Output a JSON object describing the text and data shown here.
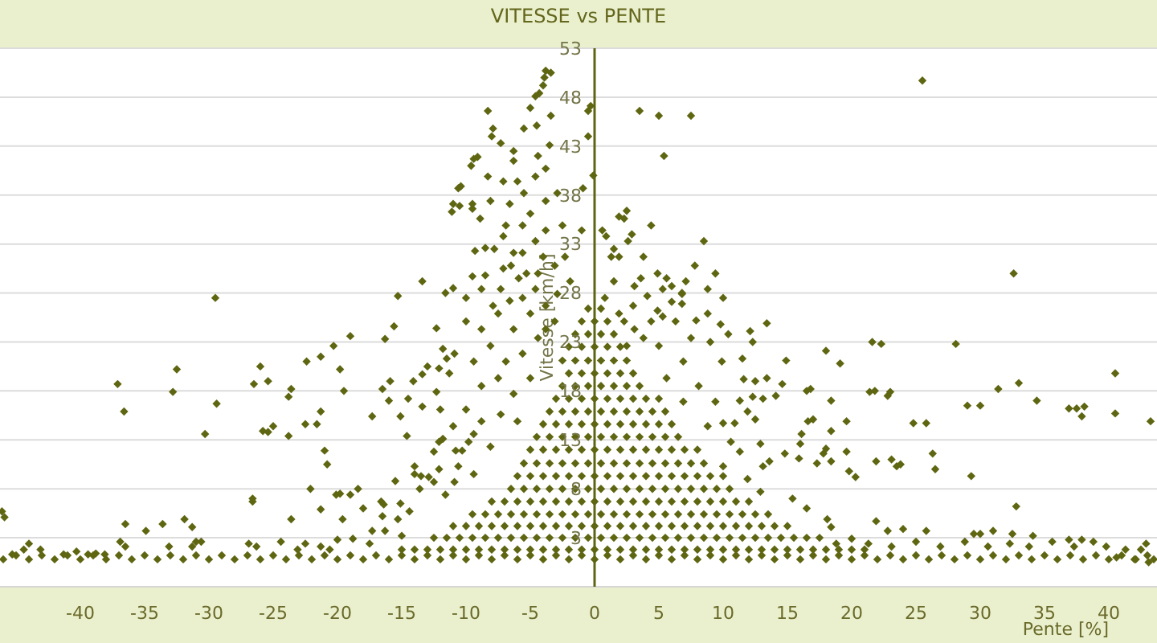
{
  "chart_data": {
    "type": "scatter",
    "title": "VITESSE vs PENTE",
    "xlabel": "Pente [%]",
    "ylabel": "Vitesse [km/h]",
    "xlim": [
      -46.25,
      43.75
    ],
    "xticks": [
      -40,
      -35,
      -30,
      -25,
      -20,
      -15,
      -10,
      -5,
      0,
      5,
      10,
      15,
      20,
      25,
      30,
      35,
      40
    ],
    "ylim": [
      -2,
      53
    ],
    "yticks": [
      3,
      8,
      13,
      18,
      23,
      28,
      33,
      38,
      43,
      48,
      53
    ],
    "grid": "y",
    "marker": "diamond",
    "color": "#5f6611",
    "x": [
      -46,
      -45,
      -44,
      -43,
      -42,
      -41,
      -40,
      -39,
      -38,
      -37,
      -36,
      -35,
      -34,
      -33,
      -32,
      -31,
      -30,
      -29,
      -28,
      -27,
      -26,
      -25,
      -24,
      -23,
      -22,
      -21,
      -20,
      -19,
      -18,
      -17,
      -16,
      -15,
      -14,
      -13,
      -12,
      -11,
      -10,
      -9,
      -8,
      -7,
      -6,
      -5,
      -4,
      -3,
      -2,
      -1,
      0,
      1,
      2,
      3,
      4,
      5,
      6,
      7,
      8,
      9,
      10,
      11,
      12,
      13,
      14,
      15,
      16,
      17,
      18,
      19,
      20,
      21,
      22,
      23,
      24,
      25,
      26,
      27,
      28,
      29,
      30,
      31,
      32,
      33,
      34,
      35,
      36,
      37,
      38,
      39,
      40,
      41,
      42,
      43,
      -15,
      -14,
      -13,
      -12,
      -11,
      -10,
      -9,
      -8,
      -7,
      -6,
      -5,
      -4,
      -3,
      -2,
      -1,
      0,
      1,
      2,
      3,
      4,
      5,
      6,
      7,
      8,
      9,
      10,
      11,
      12,
      13,
      14,
      15,
      16,
      17,
      18,
      19,
      20,
      21,
      -12.5,
      -11.5,
      -10.5,
      -9.5,
      -8.5,
      -7.5,
      -6.5,
      -5.5,
      -4.5,
      -3.5,
      -2.5,
      -1.5,
      -0.5,
      0.5,
      1.5,
      2.5,
      3.5,
      4.5,
      5.5,
      6.5,
      7.5,
      8.5,
      9.5,
      10.5,
      11.5,
      12.5,
      13.5,
      14.5,
      15.5,
      16.5,
      17.5,
      -11,
      -10,
      -9,
      -8,
      -7,
      -6,
      -5,
      -4,
      -3,
      -2,
      -1,
      0,
      1,
      2,
      3,
      4,
      5,
      6,
      7,
      8,
      9,
      10,
      11,
      12,
      13,
      14,
      15,
      -9.5,
      -8.5,
      -7.5,
      -6.5,
      -5.5,
      -4.5,
      -3.5,
      -2.5,
      -1.5,
      -0.5,
      0.5,
      1.5,
      2.5,
      3.5,
      4.5,
      5.5,
      6.5,
      7.5,
      8.5,
      9.5,
      10.5,
      11.5,
      12.5,
      13.5,
      -8,
      -7,
      -6,
      -5,
      -4,
      -3,
      -2,
      -1,
      0,
      1,
      2,
      3,
      4,
      5,
      6,
      7,
      8,
      9,
      10,
      11,
      12,
      -6.5,
      -5.5,
      -4.5,
      -3.5,
      -2.5,
      -1.5,
      -0.5,
      0.5,
      1.5,
      2.5,
      3.5,
      4.5,
      5.5,
      6.5,
      7.5,
      8.5,
      9.5,
      10.5,
      -6,
      -5,
      -4,
      -3,
      -2,
      -1,
      0,
      1,
      2,
      3,
      4,
      5,
      6,
      7,
      8,
      9,
      10,
      -5.5,
      -4.5,
      -3.5,
      -2.5,
      -1.5,
      -0.5,
      0.5,
      1.5,
      2.5,
      3.5,
      4.5,
      5.5,
      6.5,
      7.5,
      8.5,
      -5,
      -4,
      -3,
      -2,
      -1,
      0,
      1,
      2,
      3,
      4,
      5,
      6,
      7,
      8,
      -4.5,
      -3.5,
      -2.5,
      -1.5,
      -0.5,
      0.5,
      1.5,
      2.5,
      3.5,
      4.5,
      5.5,
      6.5,
      -4,
      -3,
      -2,
      -1,
      0,
      1,
      2,
      3,
      4,
      5,
      6,
      -3.5,
      -2.5,
      -1.5,
      -0.5,
      0.5,
      1.5,
      2.5,
      3.5,
      4.5,
      5.5,
      -3,
      -2,
      -1,
      0,
      1,
      2,
      3,
      4,
      5,
      -2.5,
      -1.5,
      -0.5,
      0.5,
      1.5,
      2.5,
      3.5,
      -2,
      -1,
      0,
      1,
      2,
      3,
      -2.5,
      -1.5,
      -0.5,
      0.5,
      1.5,
      2.5,
      -2,
      -1,
      0,
      1,
      2,
      -1.5,
      -0.5,
      0.5,
      1.5,
      -1,
      0,
      1,
      -0.5,
      0.5,
      -29.5,
      -15.3,
      -13.4,
      -8.3,
      -7.9,
      -8,
      -7.3,
      -9.4,
      -9.1,
      -9.6,
      -8.3,
      -10.6,
      -10.4,
      -11,
      -11.1,
      -10.5,
      -9.5,
      -9.5,
      -8.9,
      -9.3,
      -8.5,
      -9.5,
      -8.5,
      -11.6,
      -11,
      -3.4,
      -3.8,
      -3.9,
      -4,
      -4.6,
      -4.3,
      -5,
      -3.4,
      -5.5,
      -4.5,
      -6.3,
      -4.4,
      -3.5,
      -6.3,
      -7.1,
      -6,
      -4.6,
      -3.8,
      -6.6,
      -5,
      -3.8,
      -7.1,
      -4.6,
      -3.8,
      -5.6,
      -6.3,
      -7.1,
      -5.9,
      -4.6,
      -7.9,
      -6.6,
      -2.9,
      -3.1,
      -4,
      -2.9,
      -2.5,
      -2.3,
      -1.9,
      -5.5,
      -0.5,
      -0.3,
      -0.5,
      -0.1,
      0.9,
      1.3,
      0.6,
      1.9,
      -0.9,
      -1,
      25.5,
      3.5,
      5,
      7.5,
      5.4,
      2.5,
      2.3,
      2.9,
      2.6,
      1.5,
      1.9,
      32.6,
      4.9,
      5.6,
      7.1,
      6,
      5.3,
      6.8,
      3.6,
      3.1,
      4.1,
      6,
      6.8,
      6.8,
      4.9,
      5.3,
      7.9,
      3,
      2.3,
      -37.1,
      -36.6,
      -32.5,
      -32.8,
      -29.4,
      -30.3,
      -26.5,
      -26,
      -25.4,
      -25.8,
      -25.4,
      -25,
      -23.8,
      -23.8,
      -23.6,
      -22.4,
      -21.3,
      -20.3,
      -19,
      -19.8,
      -19.5,
      -22.5,
      -21.6,
      -21.3,
      -21,
      -20.8,
      -22.1,
      -21.3,
      -26.6,
      -26.6,
      -23.6,
      -36.5,
      -34.9,
      -33.6,
      -31.9,
      -31.3,
      -16.3,
      -15.6,
      -16.5,
      -15.9,
      -16,
      -17.3,
      -15.1,
      -14.6,
      -15.5,
      -20.1,
      -19.8,
      -19,
      -18.4,
      -18,
      -16.4,
      -16.6,
      -15.1,
      -13.6,
      -19.6,
      -16.5,
      -15.3,
      -14.4,
      -14.5,
      -13.4,
      -14.1,
      -13.4,
      -13,
      -12.3,
      -11.8,
      -11.5,
      -10.9,
      -12.1,
      -11.3,
      -12.3,
      -12,
      -12.5,
      -12.1,
      -11.8,
      -14,
      -14,
      -13.5,
      -12.9,
      -12.1,
      -10.8,
      -10.3,
      -9.8,
      -10.9,
      -11.6,
      -10,
      -8.8,
      -7.5,
      -6.3,
      -5,
      -4.4,
      -8.1,
      -9.4,
      -6.9,
      -5.6,
      -8.8,
      -7.5,
      -6.3,
      -5,
      -10,
      -8.8,
      -7.3,
      -6,
      -11,
      -9.4,
      -8.1,
      -10.6,
      -9.4,
      -12.5,
      -8.8,
      -7.3,
      -5.6,
      -10,
      -6.5,
      -7.8,
      -5.6,
      -5.3,
      -6.9,
      -8.1,
      -4.4,
      -3.8,
      -3.1,
      -3.8,
      -18.8,
      -17.5,
      -21.3,
      -22.5,
      -24.4,
      -26.3,
      -26.9,
      -30.6,
      -31,
      -33.1,
      -36.9,
      -36.5,
      -31.3,
      -16.3,
      -15,
      -17.3,
      -20,
      -20.6,
      -23.1,
      -46.1,
      -45.9,
      -44.4,
      -44,
      -43.1,
      -45.3,
      -41.3,
      -40.3,
      -39.4,
      -38.8,
      -38.1,
      40.5,
      40.5,
      43.25,
      28.1,
      21.6,
      22.3,
      18,
      19.1,
      14.9,
      31.4,
      33,
      34.4,
      36.9,
      37.5,
      38.1,
      37.9,
      29,
      30,
      21.4,
      21.8,
      22.8,
      23,
      18.4,
      19.6,
      24.8,
      25.8,
      16.5,
      16.8,
      16.6,
      17,
      16.1,
      16,
      18,
      17.8,
      18.4,
      19.6,
      17.3,
      18.4,
      14.8,
      15.9,
      21.9,
      23.1,
      23.5,
      23.8,
      19.8,
      20.3,
      26.3,
      26.5,
      29.3,
      32.8,
      21.9,
      22.8,
      24,
      25.8,
      29.5,
      30,
      31,
      32.5,
      34.1,
      36.9,
      37.9,
      15.4,
      16.5,
      12.9,
      18.1,
      18.4,
      40.6,
      41.3,
      42.5,
      42.9,
      42.1,
      43.1,
      43.5,
      18.8,
      20,
      21.3,
      23.1,
      25,
      26.9,
      28.8,
      30.6,
      32.3,
      33.8,
      35.6,
      37.3,
      38.8,
      39.8,
      9.8,
      10.4,
      12.1,
      12.3,
      11.5,
      9.9,
      9,
      13.4,
      11.6,
      12.5,
      13.4,
      14.6,
      11.3,
      12.3,
      13.1,
      14.1,
      11.9,
      12.5,
      10,
      10.9,
      12.9,
      13.1,
      13.6,
      11.3,
      6.3,
      7.5,
      8.8,
      5,
      6.9,
      5.6,
      8.1,
      9.4,
      6.9,
      8.8,
      10.6,
      10,
      11.9,
      3.8,
      4.4,
      3.1,
      2.5,
      8.8,
      10,
      7.8,
      9.4,
      8.5,
      3.8,
      4.4,
      1.5,
      0.8,
      1.9
    ],
    "values": [
      0.8,
      1.2,
      0.8,
      1.2,
      0.8,
      1.2,
      0.8,
      1.2,
      0.8,
      1.2,
      0.8,
      1.2,
      0.8,
      1.2,
      0.8,
      1.2,
      0.8,
      1.2,
      0.8,
      1.2,
      0.8,
      1.2,
      0.8,
      1.2,
      0.8,
      1.2,
      0.8,
      1.2,
      0.8,
      1.2,
      0.8,
      1.2,
      0.8,
      1.2,
      0.8,
      1.2,
      0.8,
      1.2,
      0.8,
      1.2,
      0.8,
      1.2,
      0.8,
      1.2,
      0.8,
      1.2,
      0.8,
      1.2,
      0.8,
      1.2,
      0.8,
      1.2,
      0.8,
      1.2,
      0.8,
      1.2,
      0.8,
      1.2,
      0.8,
      1.2,
      0.8,
      1.2,
      0.8,
      1.2,
      0.8,
      1.2,
      0.8,
      1.2,
      0.8,
      1.2,
      0.8,
      1.2,
      0.8,
      1.2,
      0.8,
      1.2,
      0.8,
      1.2,
      0.8,
      1.2,
      0.8,
      1.2,
      0.8,
      1.2,
      0.8,
      1.2,
      0.8,
      1.2,
      0.8,
      1.2,
      1.8,
      1.8,
      1.8,
      1.8,
      1.8,
      1.8,
      1.8,
      1.8,
      1.8,
      1.8,
      1.8,
      1.8,
      1.8,
      1.8,
      1.8,
      1.8,
      1.8,
      1.8,
      1.8,
      1.8,
      1.8,
      1.8,
      1.8,
      1.8,
      1.8,
      1.8,
      1.8,
      1.8,
      1.8,
      1.8,
      1.8,
      1.8,
      1.8,
      1.8,
      1.8,
      1.8,
      1.8,
      3,
      3,
      3,
      3,
      3,
      3,
      3,
      3,
      3,
      3,
      3,
      3,
      3,
      3,
      3,
      3,
      3,
      3,
      3,
      3,
      3,
      3,
      3,
      3,
      3,
      3,
      3,
      3,
      3,
      3,
      3,
      4.2,
      4.2,
      4.2,
      4.2,
      4.2,
      4.2,
      4.2,
      4.2,
      4.2,
      4.2,
      4.2,
      4.2,
      4.2,
      4.2,
      4.2,
      4.2,
      4.2,
      4.2,
      4.2,
      4.2,
      4.2,
      4.2,
      4.2,
      4.2,
      4.2,
      4.2,
      4.2,
      5.4,
      5.4,
      5.4,
      5.4,
      5.4,
      5.4,
      5.4,
      5.4,
      5.4,
      5.4,
      5.4,
      5.4,
      5.4,
      5.4,
      5.4,
      5.4,
      5.4,
      5.4,
      5.4,
      5.4,
      5.4,
      5.4,
      5.4,
      5.4,
      6.7,
      6.7,
      6.7,
      6.7,
      6.7,
      6.7,
      6.7,
      6.7,
      6.7,
      6.7,
      6.7,
      6.7,
      6.7,
      6.7,
      6.7,
      6.7,
      6.7,
      6.7,
      6.7,
      6.7,
      6.7,
      8,
      8,
      8,
      8,
      8,
      8,
      8,
      8,
      8,
      8,
      8,
      8,
      8,
      8,
      8,
      8,
      8,
      8,
      9.3,
      9.3,
      9.3,
      9.3,
      9.3,
      9.3,
      9.3,
      9.3,
      9.3,
      9.3,
      9.3,
      9.3,
      9.3,
      9.3,
      9.3,
      9.3,
      9.3,
      10.6,
      10.6,
      10.6,
      10.6,
      10.6,
      10.6,
      10.6,
      10.6,
      10.6,
      10.6,
      10.6,
      10.6,
      10.6,
      10.6,
      10.6,
      12,
      12,
      12,
      12,
      12,
      12,
      12,
      12,
      12,
      12,
      12,
      12,
      12,
      12,
      13.3,
      13.3,
      13.3,
      13.3,
      13.3,
      13.3,
      13.3,
      13.3,
      13.3,
      13.3,
      13.3,
      13.3,
      14.6,
      14.6,
      14.6,
      14.6,
      14.6,
      14.6,
      14.6,
      14.6,
      14.6,
      14.6,
      14.6,
      15.9,
      15.9,
      15.9,
      15.9,
      15.9,
      15.9,
      15.9,
      15.9,
      15.9,
      15.9,
      17.2,
      17.2,
      17.2,
      17.2,
      17.2,
      17.2,
      17.2,
      17.2,
      17.2,
      18.5,
      18.5,
      18.5,
      18.5,
      18.5,
      18.5,
      18.5,
      19.8,
      19.8,
      19.8,
      19.8,
      19.8,
      19.8,
      21.1,
      21.1,
      21.1,
      21.1,
      21.1,
      21.1,
      22.5,
      22.5,
      22.5,
      22.5,
      22.5,
      23.8,
      23.8,
      23.8,
      23.8,
      25.1,
      25.1,
      25.1,
      26.4,
      26.4,
      27.5,
      27.7,
      29.2,
      46.6,
      44.8,
      44,
      43.3,
      41.7,
      41.9,
      41,
      39.9,
      38.7,
      38.9,
      37.1,
      36.3,
      36.9,
      37.1,
      36.6,
      35.6,
      32.3,
      32.6,
      29.7,
      29.8,
      28,
      28.5,
      50.5,
      50.7,
      50,
      49.2,
      48.1,
      48.4,
      46.9,
      46.1,
      44.8,
      45.1,
      42.5,
      42,
      43.1,
      41.5,
      39.4,
      39.4,
      39.9,
      40.7,
      37.1,
      36.1,
      37.4,
      33.8,
      33.3,
      34.4,
      34.9,
      32.1,
      30.5,
      29.5,
      28.4,
      26.7,
      27.2,
      27.9,
      30.8,
      31.7,
      38.2,
      34.9,
      31.7,
      29.2,
      38.2,
      46.6,
      47.1,
      44,
      40,
      33.8,
      31.7,
      34.4,
      35.8,
      38.7,
      34.4,
      49.7,
      46.6,
      46.1,
      46.1,
      42,
      36.4,
      35.6,
      34,
      33.3,
      32.5,
      31.7,
      30,
      30,
      29.5,
      29.2,
      28.7,
      28.4,
      27.9,
      29.5,
      28.7,
      27.7,
      27.1,
      28,
      26.9,
      26.2,
      25.6,
      25.2,
      26.7,
      25.1,
      18.7,
      15.9,
      20.2,
      17.9,
      16.7,
      13.6,
      18.7,
      20.5,
      19,
      13.9,
      13.8,
      14.4,
      13.4,
      17.4,
      18.2,
      21,
      21.5,
      22.6,
      23.6,
      20.2,
      18,
      14.6,
      14.6,
      15.9,
      11.9,
      10.5,
      8,
      5.9,
      7,
      6.7,
      4.9,
      4.4,
      3.7,
      4.4,
      4.9,
      4.1,
      23.3,
      24.6,
      18.2,
      19,
      17,
      15.4,
      15.4,
      13.4,
      8.8,
      7.4,
      7.5,
      7.4,
      8,
      6,
      6.4,
      6.7,
      6.5,
      8,
      4.9,
      5.2,
      4.9,
      5.7,
      17.2,
      16.4,
      19,
      19.7,
      20.5,
      24.4,
      22.3,
      21.3,
      21.8,
      20.3,
      19.8,
      17.9,
      16.1,
      11.8,
      12.8,
      13.1,
      10.3,
      9.5,
      9.3,
      9.2,
      10,
      11.9,
      11.9,
      12.8,
      8.7,
      7.4,
      25.1,
      24.3,
      25.9,
      24.3,
      25.9,
      23.4,
      22.6,
      21,
      21,
      21.8,
      18.5,
      19.3,
      17.7,
      19.3,
      16.1,
      14.9,
      15.6,
      14.9,
      14.4,
      13.6,
      12.3,
      10.3,
      9.5,
      8.7,
      28.4,
      28.4,
      27.5,
      27.5,
      30.8,
      32.5,
      32.1,
      30,
      34.9,
      37.4,
      30,
      26.7,
      25.1,
      24.3,
      2.9,
      2.4,
      2.1,
      2.4,
      2.6,
      2.1,
      2.4,
      2.6,
      2.6,
      2.1,
      2.6,
      2.1,
      2.1,
      3.7,
      3.2,
      3.7,
      2.8,
      1.8,
      1.8,
      5.7,
      5.1,
      1.8,
      2.4,
      1.8,
      1.3,
      1.3,
      1.6,
      1.3,
      1.4,
      1.3,
      19.8,
      15.7,
      14.9,
      22.8,
      23,
      22.8,
      22.1,
      20.8,
      21.1,
      18.2,
      18.8,
      17,
      16.2,
      16.2,
      16.4,
      15.4,
      16.5,
      16.5,
      17.9,
      18,
      17.5,
      17.9,
      17,
      14.9,
      14.7,
      14.7,
      18,
      18.2,
      14.9,
      15.1,
      13.6,
      12.6,
      12.1,
      11.6,
      13.9,
      11.8,
      10.6,
      10.8,
      11.6,
      11.1,
      10.8,
      11,
      10.3,
      10.5,
      9.8,
      9.2,
      11.6,
      10,
      9.3,
      6.2,
      4.7,
      3.7,
      3.9,
      3.7,
      3.4,
      3.4,
      3.7,
      3.4,
      3.2,
      2.8,
      2.8,
      7,
      6,
      7.7,
      4.9,
      4.1,
      1,
      1.8,
      1.8,
      2.4,
      0.8,
      0.5,
      0.8,
      2.4,
      2.9,
      2.4,
      2.1,
      2.6,
      2.1,
      2.6,
      2.1,
      2.4,
      2.1,
      2.6,
      2.1,
      2.6,
      2.1,
      24.8,
      23.8,
      24.1,
      23,
      21.3,
      21,
      23,
      24.9,
      19.2,
      19,
      19.3,
      18.7,
      17,
      17.4,
      17.2,
      17.5,
      15.9,
      15.1,
      14.7,
      14.7,
      12.6,
      10.3,
      10.8,
      11.8,
      25.1,
      23.4,
      25.9,
      22.6,
      21,
      19.3,
      18.5,
      16.9,
      16.9,
      14.4,
      12.8,
      10.3,
      9,
      23.4,
      25.1,
      24.3,
      22.6,
      28.4,
      27.5,
      30.8,
      30,
      33.3,
      31.7,
      34.9,
      29.2,
      27.5,
      25.9
    ]
  }
}
